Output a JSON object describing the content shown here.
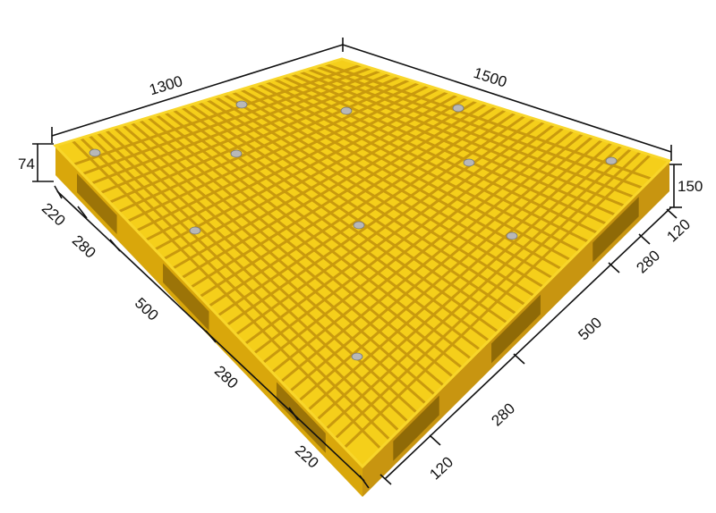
{
  "colors": {
    "top_face": "#f5cf1a",
    "side_left": "#d9a70b",
    "side_right": "#c89510",
    "grid_shadow": "#c99a0e",
    "rim": "#f8d62a",
    "bolt": "#b8b8b8",
    "dimension_line": "#111111"
  },
  "dimensions": {
    "top_left": "1300",
    "top_right": "1500",
    "height_left": "74",
    "height_right": "150",
    "left_side": [
      "220",
      "280",
      "500",
      "280",
      "220"
    ],
    "right_side": [
      "120",
      "280",
      "500",
      "280",
      "120"
    ]
  }
}
